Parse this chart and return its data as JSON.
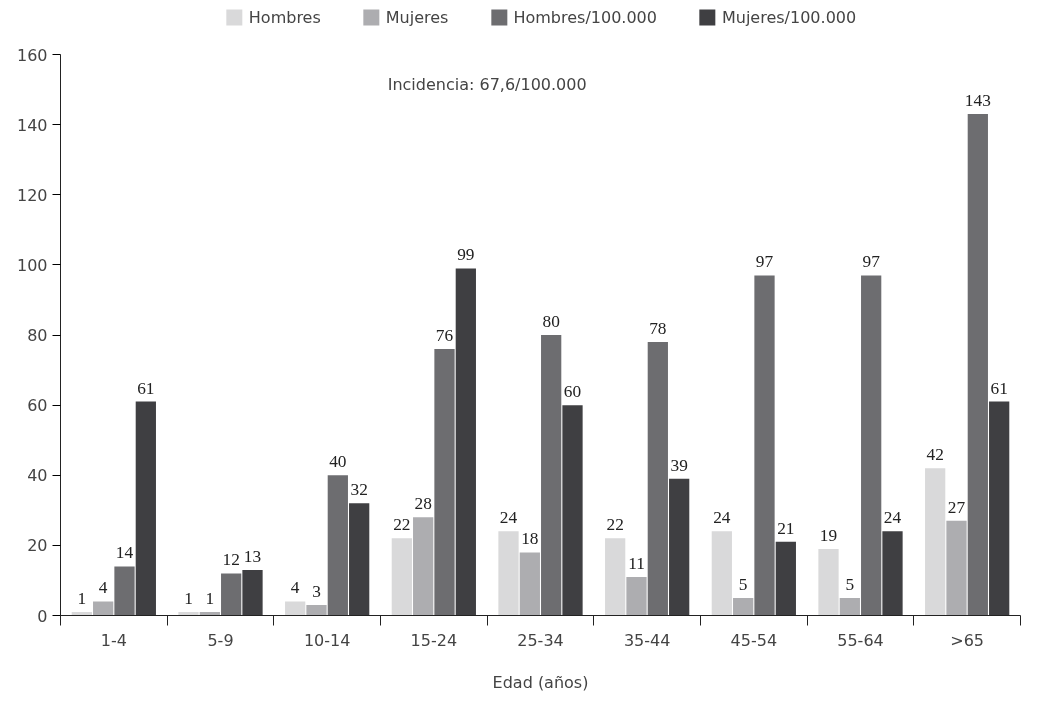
{
  "chart_data": {
    "type": "bar",
    "xlabel": "Edad (años)",
    "categories": [
      "1-4",
      "5-9",
      "10-14",
      "15-24",
      "25-34",
      "35-44",
      "45-54",
      "55-64",
      ">65"
    ],
    "series": [
      {
        "name": "Hombres",
        "color": "#d9d9da",
        "values": [
          1,
          1,
          4,
          22,
          24,
          22,
          24,
          19,
          42
        ]
      },
      {
        "name": "Mujeres",
        "color": "#adadb0",
        "values": [
          4,
          1,
          3,
          28,
          18,
          11,
          5,
          5,
          27
        ]
      },
      {
        "name": "Hombres/100.000",
        "color": "#6d6d70",
        "values": [
          14,
          12,
          40,
          76,
          80,
          78,
          97,
          97,
          143
        ]
      },
      {
        "name": "Mujeres/100.000",
        "color": "#3f3f42",
        "values": [
          61,
          13,
          32,
          99,
          60,
          39,
          21,
          24,
          61
        ]
      }
    ],
    "ylim": [
      0,
      160
    ],
    "yticks": [
      0,
      20,
      40,
      60,
      80,
      100,
      120,
      140,
      160
    ],
    "grid": false,
    "legend": "top",
    "data_labels": true,
    "annotations": [
      "Incidencia: 67,6/100.000"
    ]
  }
}
